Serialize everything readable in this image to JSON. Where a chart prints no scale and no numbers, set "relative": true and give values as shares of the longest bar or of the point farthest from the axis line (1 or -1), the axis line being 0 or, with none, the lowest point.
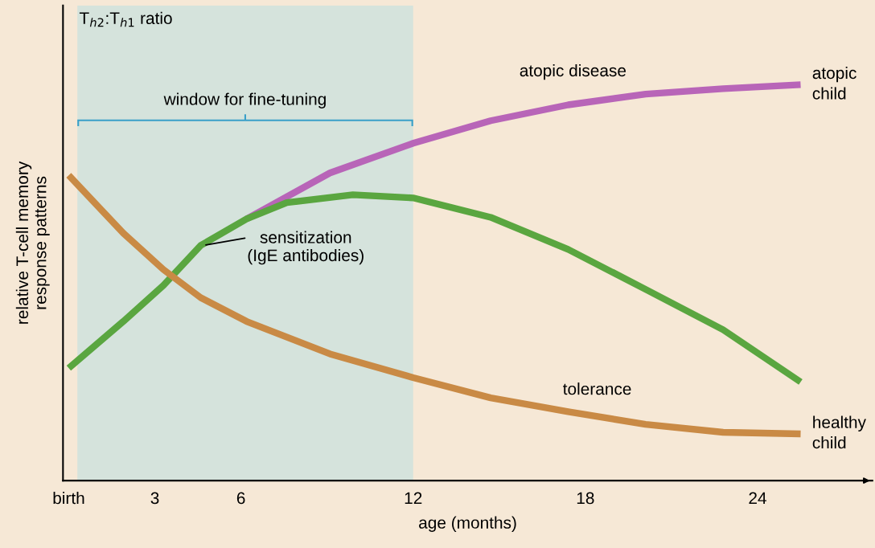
{
  "chart_data": {
    "type": "line",
    "relative": true,
    "xlabel": "age (months)",
    "ylabel": "relative T-cell memory\nresponse patterns",
    "xlim": [
      -0.2,
      28
    ],
    "xticks": [
      {
        "value": 0,
        "label": "birth"
      },
      3,
      6,
      12,
      18,
      24
    ],
    "tick_labels": "x",
    "grid": false,
    "marker": "none",
    "line_style": "solid",
    "bands": [
      {
        "axis": "x",
        "from": 0.3,
        "to": 12,
        "label": "window for fine-tuning",
        "color": "#d5e3dc"
      }
    ],
    "series": [
      {
        "name": "atopic child",
        "color": "#b865b8",
        "x": [
          6.2,
          9.1,
          12,
          14.7,
          17.4,
          20.1,
          22.8,
          25.5
        ],
        "values": [
          0.661,
          0.777,
          0.852,
          0.909,
          0.949,
          0.976,
          0.99,
          1
        ]
      },
      {
        "color": "#5aa640",
        "x": [
          0,
          1.9,
          3.3,
          4.6,
          6.2,
          7.6,
          9.9,
          12,
          14.7,
          17.4,
          20.1,
          22.8,
          25.5
        ],
        "values": [
          0.284,
          0.402,
          0.493,
          0.594,
          0.661,
          0.702,
          0.722,
          0.714,
          0.665,
          0.584,
          0.483,
          0.381,
          0.249
        ]
      },
      {
        "name": "healthy child",
        "color": "#c98a45",
        "x": [
          0,
          1.9,
          3.3,
          4.6,
          6.2,
          9.1,
          12,
          14.7,
          17.4,
          20.1,
          22.8,
          25.5
        ],
        "values": [
          0.771,
          0.625,
          0.533,
          0.462,
          0.402,
          0.32,
          0.26,
          0.209,
          0.174,
          0.142,
          0.122,
          0.118
        ]
      }
    ],
    "annotations": [
      "T$_{h2}$:T$_{h1}$ ratio",
      "atopic disease",
      {
        "text": "sensitization\n(IgE antibodies)",
        "x": 4.7,
        "y": 0.594
      },
      "tolerance"
    ]
  }
}
